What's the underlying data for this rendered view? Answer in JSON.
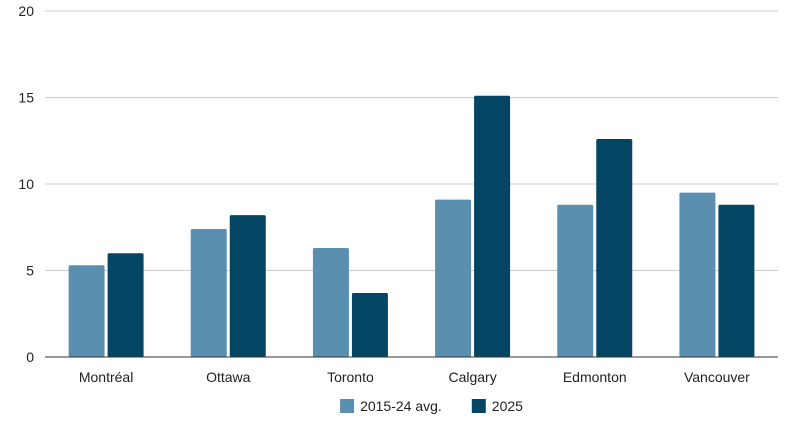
{
  "chart_data": {
    "type": "bar",
    "title": "",
    "xlabel": "",
    "ylabel": "",
    "categories": [
      "Montréal",
      "Ottawa",
      "Toronto",
      "Calgary",
      "Edmonton",
      "Vancouver"
    ],
    "series": [
      {
        "name": "2015-24 avg.",
        "color": "#5b8fb0",
        "values": [
          5.3,
          7.4,
          6.3,
          9.1,
          8.8,
          9.5
        ]
      },
      {
        "name": "2025",
        "color": "#044563",
        "values": [
          6.0,
          8.2,
          3.7,
          15.1,
          12.6,
          8.8
        ]
      }
    ],
    "ylim": [
      0,
      20
    ],
    "yticks": [
      "0",
      "5",
      "10",
      "15",
      "20"
    ],
    "grid": true,
    "legend_position": "bottom"
  }
}
